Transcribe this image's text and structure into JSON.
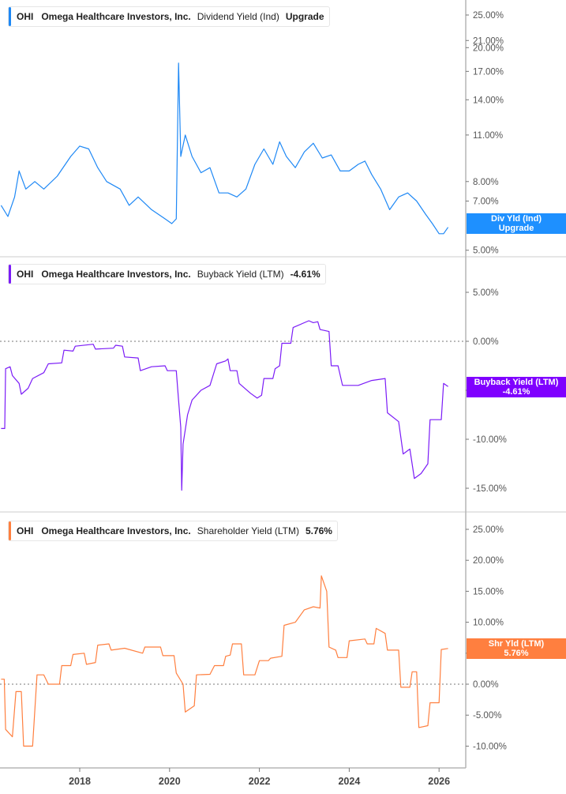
{
  "panels": [
    {
      "ticker": "OHI",
      "company": "Omega Healthcare Investors, Inc.",
      "metric": "Dividend Yield (Ind)",
      "value": "Upgrade",
      "tag_line1": "Div Yld (Ind)",
      "tag_line2": "Upgrade",
      "color": "#1e88f5"
    },
    {
      "ticker": "OHI",
      "company": "Omega Healthcare Investors, Inc.",
      "metric": "Buyback Yield (LTM)",
      "value": "-4.61%",
      "tag_line1": "Buyback Yield (LTM)",
      "tag_line2": "-4.61%",
      "color": "#7b1cf7"
    },
    {
      "ticker": "OHI",
      "company": "Omega Healthcare Investors, Inc.",
      "metric": "Shareholder Yield (LTM)",
      "value": "5.76%",
      "tag_line1": "Shr Yld (LTM)",
      "tag_line2": "5.76%",
      "color": "#ff7f3f"
    }
  ],
  "chart_data": [
    {
      "type": "line",
      "yscale": "log",
      "ylim": [
        4.8,
        27
      ],
      "yticks": [
        "25.00%",
        "21.00%",
        "20.00%",
        "17.00%",
        "14.00%",
        "11.00%",
        "8.00%",
        "7.00%",
        "5.00%"
      ],
      "ytick_values": [
        25,
        21,
        20,
        17,
        14,
        11,
        8,
        7,
        5
      ],
      "points": [
        [
          2016.25,
          6.8
        ],
        [
          2016.4,
          6.3
        ],
        [
          2016.55,
          7.2
        ],
        [
          2016.65,
          8.6
        ],
        [
          2016.8,
          7.6
        ],
        [
          2017.0,
          8.0
        ],
        [
          2017.2,
          7.6
        ],
        [
          2017.5,
          8.3
        ],
        [
          2017.8,
          9.5
        ],
        [
          2018.0,
          10.2
        ],
        [
          2018.2,
          10.0
        ],
        [
          2018.4,
          8.8
        ],
        [
          2018.6,
          8.0
        ],
        [
          2018.9,
          7.6
        ],
        [
          2019.1,
          6.8
        ],
        [
          2019.3,
          7.2
        ],
        [
          2019.6,
          6.6
        ],
        [
          2019.9,
          6.2
        ],
        [
          2020.05,
          6.0
        ],
        [
          2020.15,
          6.2
        ],
        [
          2020.2,
          18.0
        ],
        [
          2020.25,
          9.5
        ],
        [
          2020.35,
          11.0
        ],
        [
          2020.5,
          9.5
        ],
        [
          2020.7,
          8.5
        ],
        [
          2020.9,
          8.8
        ],
        [
          2021.1,
          7.4
        ],
        [
          2021.3,
          7.4
        ],
        [
          2021.5,
          7.2
        ],
        [
          2021.7,
          7.6
        ],
        [
          2021.9,
          9.0
        ],
        [
          2022.1,
          10.0
        ],
        [
          2022.3,
          9.0
        ],
        [
          2022.45,
          10.5
        ],
        [
          2022.6,
          9.5
        ],
        [
          2022.8,
          8.8
        ],
        [
          2023.0,
          9.8
        ],
        [
          2023.2,
          10.4
        ],
        [
          2023.4,
          9.4
        ],
        [
          2023.6,
          9.6
        ],
        [
          2023.8,
          8.6
        ],
        [
          2024.0,
          8.6
        ],
        [
          2024.2,
          9.0
        ],
        [
          2024.35,
          9.2
        ],
        [
          2024.5,
          8.4
        ],
        [
          2024.7,
          7.6
        ],
        [
          2024.9,
          6.6
        ],
        [
          2025.1,
          7.2
        ],
        [
          2025.3,
          7.4
        ],
        [
          2025.5,
          7.0
        ],
        [
          2025.7,
          6.4
        ],
        [
          2025.85,
          6.0
        ],
        [
          2026.0,
          5.6
        ],
        [
          2026.1,
          5.6
        ],
        [
          2026.2,
          5.85
        ]
      ]
    },
    {
      "type": "line",
      "yscale": "linear",
      "ylim": [
        -16.5,
        8.5
      ],
      "zero_line": true,
      "yticks": [
        "5.00%",
        "0.00%",
        "-5.00%",
        "-10.00%",
        "-15.00%"
      ],
      "ytick_values": [
        5,
        0,
        -5,
        -10,
        -15
      ],
      "points": [
        [
          2016.25,
          -8.9
        ],
        [
          2016.33,
          -8.9
        ],
        [
          2016.35,
          -2.8
        ],
        [
          2016.45,
          -2.6
        ],
        [
          2016.5,
          -3.5
        ],
        [
          2016.65,
          -4.3
        ],
        [
          2016.7,
          -5.4
        ],
        [
          2016.85,
          -4.8
        ],
        [
          2016.95,
          -3.8
        ],
        [
          2017.2,
          -3.2
        ],
        [
          2017.3,
          -2.3
        ],
        [
          2017.6,
          -2.2
        ],
        [
          2017.65,
          -0.9
        ],
        [
          2017.85,
          -1.0
        ],
        [
          2017.9,
          -0.5
        ],
        [
          2018.3,
          -0.3
        ],
        [
          2018.35,
          -0.8
        ],
        [
          2018.75,
          -0.7
        ],
        [
          2018.8,
          -0.4
        ],
        [
          2018.95,
          -0.5
        ],
        [
          2019.0,
          -1.6
        ],
        [
          2019.3,
          -1.7
        ],
        [
          2019.35,
          -3.0
        ],
        [
          2019.6,
          -2.6
        ],
        [
          2019.9,
          -2.5
        ],
        [
          2019.95,
          -3.0
        ],
        [
          2020.15,
          -3.0
        ],
        [
          2020.2,
          -6.0
        ],
        [
          2020.25,
          -8.8
        ],
        [
          2020.27,
          -15.2
        ],
        [
          2020.3,
          -10.5
        ],
        [
          2020.4,
          -7.5
        ],
        [
          2020.5,
          -6.0
        ],
        [
          2020.7,
          -5.0
        ],
        [
          2020.9,
          -4.5
        ],
        [
          2021.05,
          -2.3
        ],
        [
          2021.25,
          -2.0
        ],
        [
          2021.3,
          -1.8
        ],
        [
          2021.35,
          -3.0
        ],
        [
          2021.5,
          -3.0
        ],
        [
          2021.55,
          -4.3
        ],
        [
          2021.8,
          -5.3
        ],
        [
          2021.95,
          -5.8
        ],
        [
          2022.05,
          -5.5
        ],
        [
          2022.1,
          -3.8
        ],
        [
          2022.3,
          -3.8
        ],
        [
          2022.35,
          -2.8
        ],
        [
          2022.45,
          -2.5
        ],
        [
          2022.5,
          -0.2
        ],
        [
          2022.7,
          -0.2
        ],
        [
          2022.75,
          1.4
        ],
        [
          2023.1,
          2.1
        ],
        [
          2023.2,
          1.9
        ],
        [
          2023.3,
          2.0
        ],
        [
          2023.35,
          1.2
        ],
        [
          2023.55,
          1.0
        ],
        [
          2023.6,
          -2.5
        ],
        [
          2023.75,
          -2.5
        ],
        [
          2023.85,
          -4.5
        ],
        [
          2024.2,
          -4.5
        ],
        [
          2024.5,
          -4.0
        ],
        [
          2024.8,
          -3.8
        ],
        [
          2024.85,
          -7.3
        ],
        [
          2025.1,
          -8.2
        ],
        [
          2025.2,
          -11.5
        ],
        [
          2025.35,
          -11.0
        ],
        [
          2025.45,
          -14.0
        ],
        [
          2025.6,
          -13.5
        ],
        [
          2025.75,
          -12.5
        ],
        [
          2025.8,
          -8.0
        ],
        [
          2026.05,
          -8.0
        ],
        [
          2026.1,
          -4.3
        ],
        [
          2026.2,
          -4.61
        ]
      ]
    },
    {
      "type": "line",
      "yscale": "linear",
      "ylim": [
        -13,
        28
      ],
      "zero_line": true,
      "yticks": [
        "25.00%",
        "20.00%",
        "15.00%",
        "10.00%",
        "5.00%",
        "0.00%",
        "-5.00%",
        "-10.00%"
      ],
      "ytick_values": [
        25,
        20,
        15,
        10,
        5,
        0,
        -5,
        -10
      ],
      "points": [
        [
          2016.25,
          0.8
        ],
        [
          2016.32,
          0.8
        ],
        [
          2016.35,
          -7.3
        ],
        [
          2016.5,
          -8.5
        ],
        [
          2016.58,
          -1.2
        ],
        [
          2016.7,
          -1.2
        ],
        [
          2016.75,
          -10.0
        ],
        [
          2016.95,
          -10.0
        ],
        [
          2017.05,
          1.5
        ],
        [
          2017.2,
          1.5
        ],
        [
          2017.3,
          0.0
        ],
        [
          2017.55,
          0.0
        ],
        [
          2017.6,
          3.0
        ],
        [
          2017.8,
          3.0
        ],
        [
          2017.85,
          4.8
        ],
        [
          2018.1,
          5.0
        ],
        [
          2018.15,
          3.2
        ],
        [
          2018.35,
          3.5
        ],
        [
          2018.4,
          6.3
        ],
        [
          2018.65,
          6.5
        ],
        [
          2018.7,
          5.5
        ],
        [
          2019.0,
          5.8
        ],
        [
          2019.4,
          5.0
        ],
        [
          2019.45,
          6.0
        ],
        [
          2019.8,
          6.0
        ],
        [
          2019.85,
          4.6
        ],
        [
          2020.1,
          4.6
        ],
        [
          2020.15,
          1.8
        ],
        [
          2020.3,
          0.0
        ],
        [
          2020.35,
          -4.5
        ],
        [
          2020.55,
          -3.5
        ],
        [
          2020.6,
          1.5
        ],
        [
          2020.9,
          1.6
        ],
        [
          2021.0,
          3.0
        ],
        [
          2021.2,
          3.0
        ],
        [
          2021.25,
          4.5
        ],
        [
          2021.35,
          4.7
        ],
        [
          2021.4,
          6.5
        ],
        [
          2021.6,
          6.5
        ],
        [
          2021.65,
          1.5
        ],
        [
          2021.9,
          1.5
        ],
        [
          2022.0,
          3.8
        ],
        [
          2022.2,
          3.8
        ],
        [
          2022.25,
          4.2
        ],
        [
          2022.5,
          4.5
        ],
        [
          2022.55,
          9.5
        ],
        [
          2022.8,
          10.0
        ],
        [
          2023.0,
          12.0
        ],
        [
          2023.2,
          12.5
        ],
        [
          2023.35,
          12.3
        ],
        [
          2023.38,
          17.5
        ],
        [
          2023.5,
          15.0
        ],
        [
          2023.55,
          6.0
        ],
        [
          2023.7,
          5.5
        ],
        [
          2023.75,
          4.3
        ],
        [
          2023.95,
          4.3
        ],
        [
          2024.0,
          7.0
        ],
        [
          2024.35,
          7.3
        ],
        [
          2024.4,
          6.5
        ],
        [
          2024.55,
          6.5
        ],
        [
          2024.6,
          9.0
        ],
        [
          2024.8,
          8.2
        ],
        [
          2024.85,
          5.5
        ],
        [
          2025.1,
          5.5
        ],
        [
          2025.15,
          -0.5
        ],
        [
          2025.35,
          -0.5
        ],
        [
          2025.4,
          2.0
        ],
        [
          2025.5,
          2.0
        ],
        [
          2025.55,
          -7.0
        ],
        [
          2025.75,
          -6.7
        ],
        [
          2025.8,
          -3.0
        ],
        [
          2026.0,
          -3.0
        ],
        [
          2026.05,
          5.6
        ],
        [
          2026.2,
          5.76
        ]
      ]
    }
  ],
  "xaxis": {
    "ticks": [
      "2018",
      "2020",
      "2022",
      "2024",
      "2026"
    ],
    "tick_values": [
      2018,
      2020,
      2022,
      2024,
      2026
    ]
  }
}
